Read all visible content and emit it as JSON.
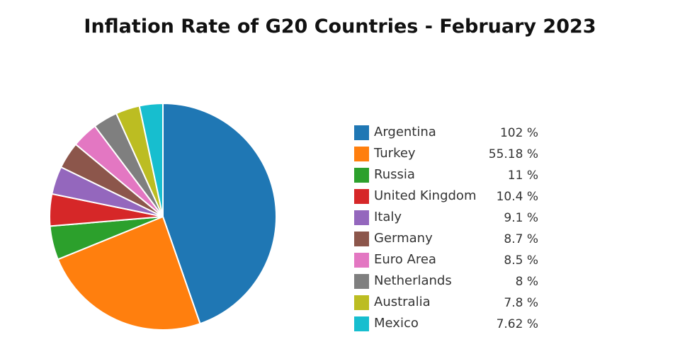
{
  "chart_data": {
    "type": "pie",
    "title": "Inflation Rate of G20 Countries - February 2023",
    "categories": [
      "Argentina",
      "Turkey",
      "Russia",
      "United Kingdom",
      "Italy",
      "Germany",
      "Euro Area",
      "Netherlands",
      "Australia",
      "Mexico"
    ],
    "values": [
      102,
      55.18,
      11,
      10.4,
      9.1,
      8.7,
      8.5,
      8,
      7.8,
      7.62
    ],
    "value_labels": [
      "102 %",
      "55.18 %",
      "11 %",
      "10.4 %",
      "9.1 %",
      "8.7 %",
      "8.5 %",
      "8 %",
      "7.8 %",
      "7.62 %"
    ],
    "colors": [
      "#1f77b4",
      "#ff7f0e",
      "#2ca02c",
      "#d62728",
      "#9467bd",
      "#8c564b",
      "#e377c2",
      "#7f7f7f",
      "#bcbd22",
      "#17becf"
    ],
    "legend_position": "right",
    "direction": "clockwise",
    "start": "top"
  }
}
